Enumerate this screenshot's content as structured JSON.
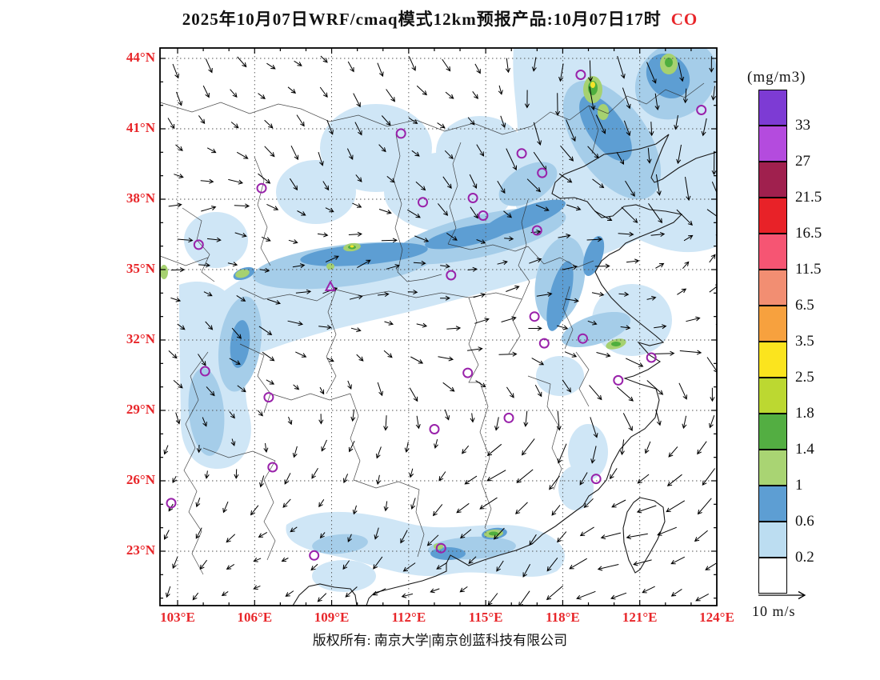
{
  "title": {
    "main": "2025年10月07日WRF/cmaq模式12km预报产品:10月07日17时",
    "species": "CO",
    "species_color": "#e8262a"
  },
  "axes": {
    "label_color": "#e8262a",
    "lat": {
      "values": [
        44,
        41,
        38,
        35,
        32,
        29,
        26,
        23
      ],
      "labels": [
        "44°N",
        "41°N",
        "38°N",
        "35°N",
        "32°N",
        "29°N",
        "26°N",
        "23°N"
      ]
    },
    "lon": {
      "values": [
        103,
        106,
        109,
        112,
        115,
        118,
        121,
        124
      ],
      "labels": [
        "103°E",
        "106°E",
        "109°E",
        "112°E",
        "115°E",
        "118°E",
        "121°E",
        "124°E"
      ]
    }
  },
  "colorbar": {
    "units": "(mg/m3)",
    "labels": [
      "33",
      "27",
      "21.5",
      "16.5",
      "11.5",
      "6.5",
      "3.5",
      "2.5",
      "1.8",
      "1.4",
      "1",
      "0.6",
      "0.2"
    ],
    "colors_top_to_bottom": [
      "#7d3bd4",
      "#b44bde",
      "#a0204e",
      "#e82228",
      "#f65573",
      "#f28e72",
      "#f7a13e",
      "#fbe41e",
      "#bcd831",
      "#53ae42",
      "#a9d473",
      "#5d9ed3",
      "#bcddf1",
      "#ffffff"
    ]
  },
  "field_palette": {
    "light_blue": "#cfe6f6",
    "medium_blue": "#a5cde9",
    "dark_blue": "#5d9ed3",
    "light_green": "#a6d170",
    "green": "#4fae3e",
    "yellow": "#f5e32a"
  },
  "markers": {
    "color": "#9922aa",
    "circles": [
      [
        111.7,
        40.8
      ],
      [
        116.4,
        39.95
      ],
      [
        117.2,
        39.12
      ],
      [
        114.5,
        38.05
      ],
      [
        112.55,
        37.87
      ],
      [
        106.27,
        38.47
      ],
      [
        103.82,
        36.06
      ],
      [
        114.9,
        37.3
      ],
      [
        117.0,
        36.67
      ],
      [
        113.65,
        34.76
      ],
      [
        116.9,
        33.0
      ],
      [
        117.28,
        31.86
      ],
      [
        118.78,
        32.06
      ],
      [
        121.45,
        31.25
      ],
      [
        120.16,
        30.28
      ],
      [
        114.3,
        30.6
      ],
      [
        113.0,
        28.2
      ],
      [
        115.9,
        28.68
      ],
      [
        119.3,
        26.08
      ],
      [
        104.07,
        30.67
      ],
      [
        106.55,
        29.56
      ],
      [
        106.7,
        26.58
      ],
      [
        102.75,
        25.05
      ],
      [
        108.32,
        22.82
      ],
      [
        113.26,
        23.13
      ],
      [
        118.7,
        43.3
      ],
      [
        123.4,
        41.8
      ]
    ],
    "triangles": [
      [
        108.95,
        34.27
      ]
    ]
  },
  "wind_legend": {
    "label": "10 m/s"
  },
  "footer": {
    "copyright": "版权所有: 南京大学|南京创蓝科技有限公司"
  }
}
